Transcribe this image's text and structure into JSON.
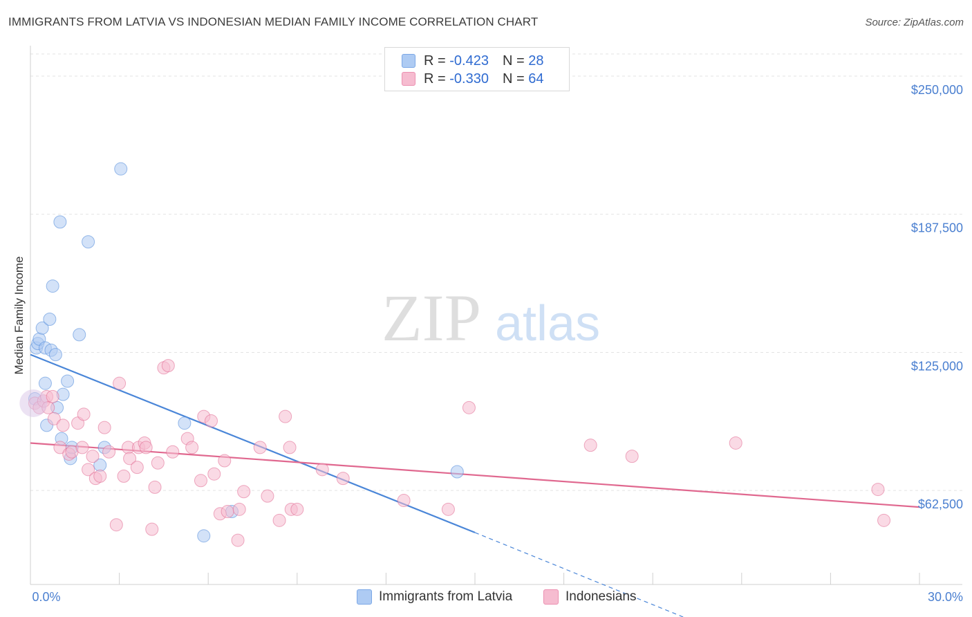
{
  "title": "IMMIGRANTS FROM LATVIA VS INDONESIAN MEDIAN FAMILY INCOME CORRELATION CHART",
  "source": "Source: ZipAtlas.com",
  "watermark": {
    "zip": "ZIP",
    "atlas": "atlas"
  },
  "legend": [
    {
      "swatch_color": "#aecbf3",
      "r_label": "R = ",
      "r_value": "-0.423",
      "n_label": "N = ",
      "n_value": "28"
    },
    {
      "swatch_color": "#f6bcd0",
      "r_label": "R = ",
      "r_value": "-0.330",
      "n_label": "N = ",
      "n_value": "64"
    }
  ],
  "bottom_legend": [
    {
      "label": "Immigrants from Latvia",
      "color": "#aecbf3"
    },
    {
      "label": "Indonesians",
      "color": "#f6bcd0"
    }
  ],
  "chart_data": {
    "type": "scatter",
    "ylabel": "Median Family Income",
    "xlim": [
      0,
      30
    ],
    "ylim": [
      20000,
      260000
    ],
    "x_tick_labels": [
      "0.0%",
      "30.0%"
    ],
    "y_ticks": [
      {
        "value": 250000,
        "label": "$250,000"
      },
      {
        "value": 187500,
        "label": "$187,500"
      },
      {
        "value": 125000,
        "label": "$125,000"
      },
      {
        "value": 62500,
        "label": "$62,500"
      }
    ],
    "grid": true,
    "series": [
      {
        "name": "Immigrants from Latvia",
        "color": "#4a86d8",
        "fill": "#aecbf3",
        "points": [
          [
            0.2,
            127000
          ],
          [
            0.25,
            129000
          ],
          [
            0.3,
            131000
          ],
          [
            0.4,
            136000
          ],
          [
            0.5,
            127000
          ],
          [
            0.5,
            111000
          ],
          [
            0.55,
            92000
          ],
          [
            0.65,
            140000
          ],
          [
            0.7,
            126000
          ],
          [
            0.75,
            155000
          ],
          [
            0.85,
            124000
          ],
          [
            0.9,
            100000
          ],
          [
            1.0,
            184000
          ],
          [
            1.05,
            86000
          ],
          [
            1.1,
            106000
          ],
          [
            1.25,
            112000
          ],
          [
            1.35,
            77000
          ],
          [
            1.4,
            82000
          ],
          [
            1.65,
            133000
          ],
          [
            1.95,
            175000
          ],
          [
            2.35,
            74000
          ],
          [
            2.5,
            82000
          ],
          [
            3.05,
            208000
          ],
          [
            5.2,
            93000
          ],
          [
            5.85,
            42000
          ],
          [
            6.8,
            53000
          ],
          [
            14.4,
            71000
          ],
          [
            0.15,
            104000
          ]
        ],
        "trend": {
          "x0": 0,
          "y0": 124000,
          "x1": 15.0,
          "y1": 43500,
          "dash_x1": 23.0,
          "dash_y1": 0
        }
      },
      {
        "name": "Indonesians",
        "color": "#e0688f",
        "fill": "#f6bcd0",
        "points": [
          [
            0.15,
            102000
          ],
          [
            0.3,
            100000
          ],
          [
            0.45,
            103000
          ],
          [
            0.55,
            105000
          ],
          [
            0.6,
            100000
          ],
          [
            0.75,
            105000
          ],
          [
            0.8,
            95000
          ],
          [
            1.0,
            82000
          ],
          [
            1.1,
            92000
          ],
          [
            1.3,
            79000
          ],
          [
            1.4,
            80000
          ],
          [
            1.6,
            93000
          ],
          [
            1.75,
            82000
          ],
          [
            1.8,
            97000
          ],
          [
            1.95,
            72000
          ],
          [
            2.1,
            78000
          ],
          [
            2.2,
            68000
          ],
          [
            2.35,
            69000
          ],
          [
            2.5,
            91000
          ],
          [
            2.65,
            80000
          ],
          [
            2.9,
            47000
          ],
          [
            3.0,
            111000
          ],
          [
            3.15,
            69000
          ],
          [
            3.3,
            82000
          ],
          [
            3.35,
            77000
          ],
          [
            3.6,
            73000
          ],
          [
            3.65,
            82000
          ],
          [
            3.85,
            84000
          ],
          [
            3.9,
            82000
          ],
          [
            4.1,
            45000
          ],
          [
            4.2,
            64000
          ],
          [
            4.3,
            75000
          ],
          [
            4.5,
            118000
          ],
          [
            4.65,
            119000
          ],
          [
            4.8,
            80000
          ],
          [
            5.3,
            86000
          ],
          [
            5.45,
            82000
          ],
          [
            5.75,
            67000
          ],
          [
            5.85,
            96000
          ],
          [
            6.1,
            94000
          ],
          [
            6.2,
            70000
          ],
          [
            6.4,
            52000
          ],
          [
            6.55,
            76000
          ],
          [
            6.65,
            53000
          ],
          [
            7.0,
            40000
          ],
          [
            7.05,
            54000
          ],
          [
            7.2,
            62000
          ],
          [
            7.75,
            82000
          ],
          [
            8.0,
            60000
          ],
          [
            8.4,
            49000
          ],
          [
            8.6,
            96000
          ],
          [
            8.75,
            82000
          ],
          [
            8.8,
            54000
          ],
          [
            9.0,
            54000
          ],
          [
            9.85,
            72000
          ],
          [
            10.55,
            68000
          ],
          [
            12.6,
            58000
          ],
          [
            14.1,
            54000
          ],
          [
            14.8,
            100000
          ],
          [
            18.9,
            83000
          ],
          [
            20.3,
            78000
          ],
          [
            23.8,
            84000
          ],
          [
            28.6,
            63000
          ],
          [
            28.8,
            49000
          ]
        ],
        "trend": {
          "x0": 0,
          "y0": 84000,
          "x1": 30,
          "y1": 55000
        }
      }
    ]
  }
}
